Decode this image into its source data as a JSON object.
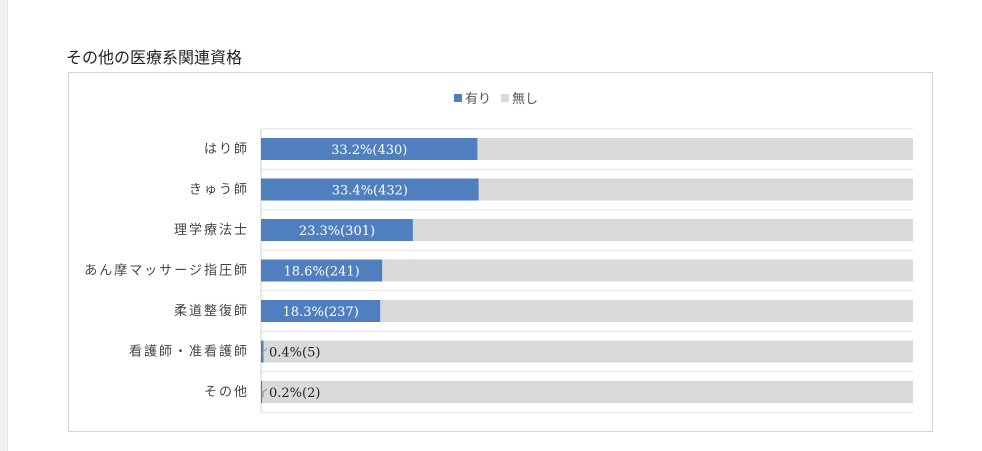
{
  "section_title": "その他の医療系関連資格",
  "legend": [
    {
      "label": "有り",
      "color": "#4f7fbe"
    },
    {
      "label": "無し",
      "color": "#d9d9d9"
    }
  ],
  "chart_data": {
    "type": "bar",
    "orientation": "horizontal",
    "stacked": true,
    "percent_stacked": true,
    "categories": [
      "はり師",
      "きゅう師",
      "理学療法士",
      "あん摩マッサージ指圧師",
      "柔道整復師",
      "看護師・准看護師",
      "その他"
    ],
    "series": [
      {
        "name": "有り",
        "values": [
          33.2,
          33.4,
          23.3,
          18.6,
          18.3,
          0.4,
          0.2
        ],
        "color": "#4f7fbe"
      },
      {
        "name": "無し",
        "values": [
          66.8,
          66.6,
          76.7,
          81.4,
          81.7,
          99.6,
          99.8
        ],
        "color": "#d9d9d9"
      }
    ],
    "data_labels": [
      "33.2%(430)",
      "33.4%(432)",
      "23.3%(301)",
      "18.6%(241)",
      "18.3%(237)",
      "0.4%(5)",
      "0.2%(2)"
    ],
    "xlim": [
      0,
      100
    ],
    "legend_position": "top-center",
    "grid": true
  }
}
